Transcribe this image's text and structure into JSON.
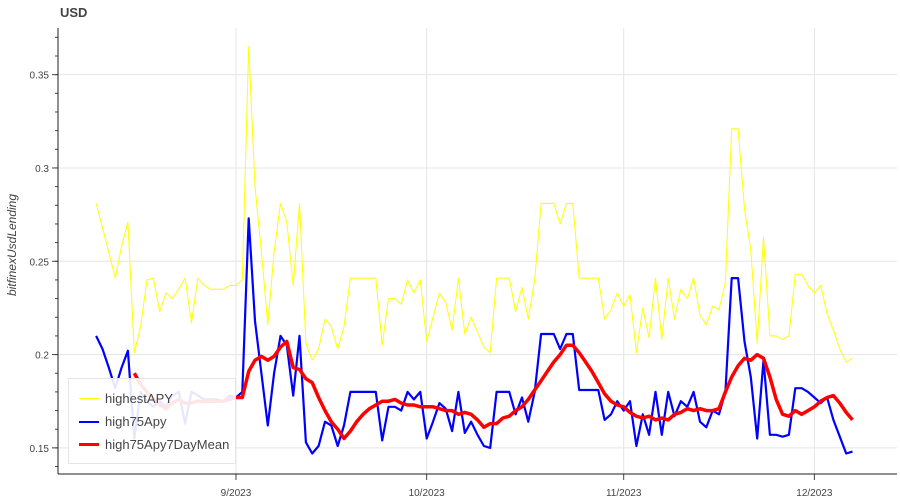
{
  "chart_data": {
    "type": "line",
    "title": "USD",
    "xlabel": "",
    "ylabel": "bitfinexUsdLending",
    "x_start": "2023-08-10",
    "x_step_days": 1,
    "xlim_days": [
      -6,
      126
    ],
    "ylim": [
      0.136,
      0.375
    ],
    "grid": true,
    "legend_position": "bottom-left",
    "y_ticks": [
      0.15,
      0.2,
      0.25,
      0.3,
      0.35
    ],
    "y_tick_labels": [
      "0.15",
      "0.2",
      "0.25",
      "0.3",
      "0.35"
    ],
    "x_ticks": [
      {
        "day": 22,
        "label": "9/2023"
      },
      {
        "day": 52,
        "label": "10/2023"
      },
      {
        "day": 83,
        "label": "11/2023"
      },
      {
        "day": 113,
        "label": "12/2023"
      }
    ],
    "series": [
      {
        "name": "highestAPY",
        "color": "#ffff00",
        "width": 1,
        "start": 0,
        "values": [
          0.281,
          0.268,
          0.255,
          0.241,
          0.258,
          0.271,
          0.201,
          0.215,
          0.24,
          0.241,
          0.223,
          0.233,
          0.23,
          0.235,
          0.241,
          0.217,
          0.241,
          0.237,
          0.235,
          0.235,
          0.235,
          0.237,
          0.237,
          0.24,
          0.365,
          0.29,
          0.255,
          0.216,
          0.255,
          0.281,
          0.271,
          0.237,
          0.281,
          0.206,
          0.197,
          0.203,
          0.219,
          0.215,
          0.203,
          0.215,
          0.241,
          0.241,
          0.241,
          0.241,
          0.241,
          0.205,
          0.23,
          0.23,
          0.227,
          0.24,
          0.233,
          0.24,
          0.207,
          0.22,
          0.233,
          0.228,
          0.213,
          0.241,
          0.211,
          0.22,
          0.212,
          0.204,
          0.201,
          0.241,
          0.241,
          0.241,
          0.223,
          0.236,
          0.219,
          0.24,
          0.281,
          0.281,
          0.281,
          0.27,
          0.281,
          0.281,
          0.241,
          0.241,
          0.241,
          0.241,
          0.219,
          0.224,
          0.233,
          0.226,
          0.232,
          0.201,
          0.225,
          0.209,
          0.241,
          0.208,
          0.241,
          0.219,
          0.235,
          0.23,
          0.241,
          0.221,
          0.216,
          0.226,
          0.224,
          0.239,
          0.321,
          0.321,
          0.278,
          0.256,
          0.206,
          0.263,
          0.21,
          0.21,
          0.208,
          0.21,
          0.243,
          0.243,
          0.237,
          0.233,
          0.237,
          0.222,
          0.213,
          0.203,
          0.196,
          0.198
        ]
      },
      {
        "name": "high75Apy",
        "color": "#0000ff",
        "width": 2.2,
        "start": 0,
        "values": [
          0.21,
          0.203,
          0.193,
          0.182,
          0.193,
          0.202,
          0.155,
          0.18,
          0.175,
          0.172,
          0.175,
          0.172,
          0.178,
          0.18,
          0.163,
          0.18,
          0.178,
          0.176,
          0.176,
          0.176,
          0.175,
          0.178,
          0.177,
          0.18,
          0.273,
          0.218,
          0.19,
          0.162,
          0.19,
          0.21,
          0.205,
          0.178,
          0.21,
          0.153,
          0.147,
          0.151,
          0.164,
          0.162,
          0.151,
          0.162,
          0.18,
          0.18,
          0.18,
          0.18,
          0.18,
          0.154,
          0.172,
          0.172,
          0.17,
          0.18,
          0.176,
          0.18,
          0.155,
          0.164,
          0.174,
          0.171,
          0.159,
          0.18,
          0.158,
          0.164,
          0.157,
          0.151,
          0.15,
          0.18,
          0.18,
          0.18,
          0.168,
          0.177,
          0.164,
          0.18,
          0.211,
          0.211,
          0.211,
          0.203,
          0.211,
          0.211,
          0.181,
          0.181,
          0.181,
          0.181,
          0.165,
          0.168,
          0.175,
          0.17,
          0.175,
          0.151,
          0.168,
          0.157,
          0.18,
          0.157,
          0.18,
          0.167,
          0.175,
          0.172,
          0.18,
          0.164,
          0.161,
          0.17,
          0.168,
          0.18,
          0.241,
          0.241,
          0.207,
          0.188,
          0.155,
          0.197,
          0.157,
          0.157,
          0.156,
          0.157,
          0.182,
          0.182,
          0.18,
          0.177,
          0.174,
          0.177,
          0.165,
          0.156,
          0.147,
          0.148
        ]
      },
      {
        "name": "high75Apy7DayMean",
        "color": "#ff0000",
        "width": 3.5,
        "start": 6,
        "values": [
          0.19,
          0.184,
          0.18,
          0.176,
          0.173,
          0.171,
          0.174,
          0.176,
          0.174,
          0.174,
          0.175,
          0.175,
          0.175,
          0.175,
          0.175,
          0.176,
          0.177,
          0.177,
          0.191,
          0.197,
          0.199,
          0.197,
          0.199,
          0.204,
          0.207,
          0.193,
          0.192,
          0.187,
          0.185,
          0.177,
          0.17,
          0.164,
          0.16,
          0.155,
          0.159,
          0.164,
          0.168,
          0.171,
          0.173,
          0.175,
          0.175,
          0.176,
          0.174,
          0.173,
          0.173,
          0.172,
          0.172,
          0.172,
          0.171,
          0.17,
          0.17,
          0.168,
          0.169,
          0.168,
          0.165,
          0.161,
          0.163,
          0.163,
          0.166,
          0.167,
          0.17,
          0.172,
          0.176,
          0.181,
          0.186,
          0.191,
          0.196,
          0.2,
          0.205,
          0.205,
          0.201,
          0.196,
          0.191,
          0.185,
          0.179,
          0.175,
          0.173,
          0.172,
          0.169,
          0.167,
          0.166,
          0.167,
          0.165,
          0.166,
          0.165,
          0.168,
          0.169,
          0.171,
          0.17,
          0.171,
          0.17,
          0.17,
          0.171,
          0.18,
          0.188,
          0.194,
          0.198,
          0.197,
          0.2,
          0.198,
          0.188,
          0.176,
          0.168,
          0.167,
          0.17,
          0.168,
          0.17,
          0.172,
          0.175,
          0.177,
          0.178,
          0.174,
          0.169,
          0.165
        ]
      }
    ]
  }
}
